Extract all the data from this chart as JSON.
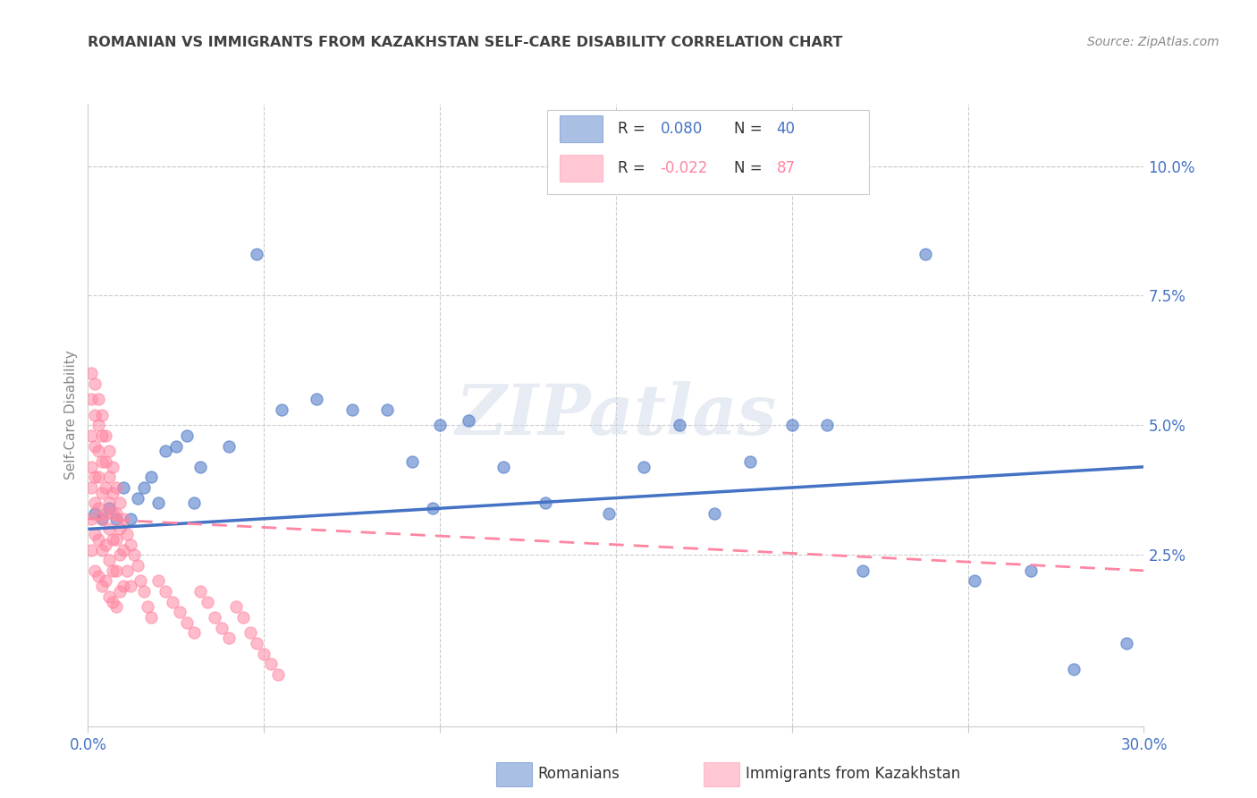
{
  "title": "ROMANIAN VS IMMIGRANTS FROM KAZAKHSTAN SELF-CARE DISABILITY CORRELATION CHART",
  "source": "Source: ZipAtlas.com",
  "ylabel": "Self-Care Disability",
  "watermark": "ZIPatlas",
  "legend_label1": "Romanians",
  "legend_label2": "Immigrants from Kazakhstan",
  "ytick_labels": [
    "10.0%",
    "7.5%",
    "5.0%",
    "2.5%"
  ],
  "ytick_values": [
    0.1,
    0.075,
    0.05,
    0.025
  ],
  "blue_color": "#4472C4",
  "pink_color": "#FF85A1",
  "title_color": "#404040",
  "xlim": [
    0.0,
    0.3
  ],
  "ylim": [
    -0.008,
    0.112
  ],
  "blue_x": [
    0.002,
    0.004,
    0.006,
    0.008,
    0.01,
    0.012,
    0.014,
    0.016,
    0.018,
    0.02,
    0.022,
    0.025,
    0.028,
    0.03,
    0.032,
    0.04,
    0.048,
    0.055,
    0.065,
    0.075,
    0.085,
    0.092,
    0.098,
    0.1,
    0.108,
    0.118,
    0.13,
    0.148,
    0.158,
    0.168,
    0.178,
    0.188,
    0.2,
    0.21,
    0.22,
    0.238,
    0.252,
    0.268,
    0.28,
    0.295
  ],
  "blue_y": [
    0.033,
    0.032,
    0.034,
    0.032,
    0.038,
    0.032,
    0.036,
    0.038,
    0.04,
    0.035,
    0.045,
    0.046,
    0.048,
    0.035,
    0.042,
    0.046,
    0.083,
    0.053,
    0.055,
    0.053,
    0.053,
    0.043,
    0.034,
    0.05,
    0.051,
    0.042,
    0.035,
    0.033,
    0.042,
    0.05,
    0.033,
    0.043,
    0.05,
    0.05,
    0.022,
    0.083,
    0.02,
    0.022,
    0.003,
    0.008
  ],
  "pink_x": [
    0.001,
    0.001,
    0.001,
    0.001,
    0.001,
    0.001,
    0.001,
    0.002,
    0.002,
    0.002,
    0.002,
    0.002,
    0.002,
    0.002,
    0.003,
    0.003,
    0.003,
    0.003,
    0.003,
    0.003,
    0.003,
    0.004,
    0.004,
    0.004,
    0.004,
    0.004,
    0.004,
    0.004,
    0.005,
    0.005,
    0.005,
    0.005,
    0.005,
    0.005,
    0.006,
    0.006,
    0.006,
    0.006,
    0.006,
    0.006,
    0.007,
    0.007,
    0.007,
    0.007,
    0.007,
    0.007,
    0.008,
    0.008,
    0.008,
    0.008,
    0.008,
    0.009,
    0.009,
    0.009,
    0.009,
    0.01,
    0.01,
    0.01,
    0.011,
    0.011,
    0.012,
    0.012,
    0.013,
    0.014,
    0.015,
    0.016,
    0.017,
    0.018,
    0.02,
    0.022,
    0.024,
    0.026,
    0.028,
    0.03,
    0.032,
    0.034,
    0.036,
    0.038,
    0.04,
    0.042,
    0.044,
    0.046,
    0.048,
    0.05,
    0.052,
    0.054
  ],
  "pink_y": [
    0.06,
    0.055,
    0.048,
    0.042,
    0.038,
    0.032,
    0.026,
    0.058,
    0.052,
    0.046,
    0.04,
    0.035,
    0.029,
    0.022,
    0.055,
    0.05,
    0.045,
    0.04,
    0.034,
    0.028,
    0.021,
    0.052,
    0.048,
    0.043,
    0.037,
    0.032,
    0.026,
    0.019,
    0.048,
    0.043,
    0.038,
    0.033,
    0.027,
    0.02,
    0.045,
    0.04,
    0.035,
    0.03,
    0.024,
    0.017,
    0.042,
    0.037,
    0.033,
    0.028,
    0.022,
    0.016,
    0.038,
    0.033,
    0.028,
    0.022,
    0.015,
    0.035,
    0.03,
    0.025,
    0.018,
    0.032,
    0.026,
    0.019,
    0.029,
    0.022,
    0.027,
    0.019,
    0.025,
    0.023,
    0.02,
    0.018,
    0.015,
    0.013,
    0.02,
    0.018,
    0.016,
    0.014,
    0.012,
    0.01,
    0.018,
    0.016,
    0.013,
    0.011,
    0.009,
    0.015,
    0.013,
    0.01,
    0.008,
    0.006,
    0.004,
    0.002
  ],
  "blue_line_x0": 0.0,
  "blue_line_x1": 0.3,
  "blue_line_y0": 0.03,
  "blue_line_y1": 0.042,
  "pink_line_x0": 0.0,
  "pink_line_x1": 0.3,
  "pink_line_y0": 0.032,
  "pink_line_y1": 0.022
}
